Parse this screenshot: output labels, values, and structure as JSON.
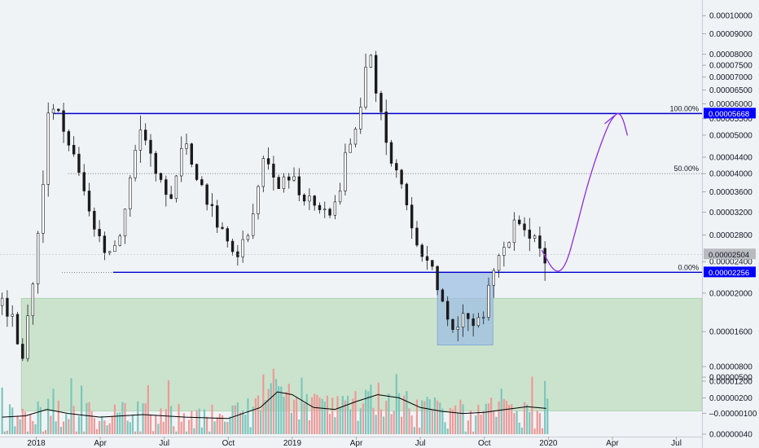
{
  "chart_data": {
    "type": "candlestick",
    "colors": {
      "background": "#f0f3f6",
      "candle": "#1a1a1a",
      "fib_line": "#0000cc",
      "fib_mid_line": "#555555",
      "support_zone": "#c4dfc4",
      "accumulation_box": "#9fbfe3",
      "projection_arrow": "#8a2be2",
      "volume_up": "#7cc6bc",
      "volume_down": "#ec9a98",
      "volume_ma": "#000000",
      "badge_fill": "#0000ff",
      "last_price_badge": "#b8babe"
    },
    "x_axis": {
      "ticks": [
        "2018",
        "Apr",
        "Jul",
        "Oct",
        "2019",
        "Apr",
        "Jul",
        "Oct",
        "2020",
        "Apr",
        "Jul"
      ],
      "tick_months": [
        0,
        3,
        6,
        9,
        12,
        15,
        18,
        21,
        24,
        27,
        30
      ],
      "range_months": [
        -1.7,
        31.2
      ]
    },
    "y_axis": {
      "scale": "log",
      "ticks": [
        "0.00010000",
        "0.00009000",
        "0.00008000",
        "0.00007500",
        "0.00007000",
        "0.00006500",
        "0.00006000",
        "0.00005500",
        "0.00005000",
        "0.00004400",
        "0.00004000",
        "0.00003600",
        "0.00003200",
        "0.00002800",
        "0.00002400",
        "0.00002000",
        "0.00001600",
        "0.00001200"
      ],
      "range": [
        8.7e-06,
        0.0001095
      ]
    },
    "fib_levels": [
      {
        "label": "100.00%",
        "value": 5.668e-05,
        "badge": "0.00005668",
        "style": "solid"
      },
      {
        "label": "50.00%",
        "value": 4e-05,
        "badge": "",
        "style": "dotted"
      },
      {
        "label": "0.00%",
        "value": 2.256e-05,
        "badge": "0.00002256",
        "style": "solid"
      }
    ],
    "last_price": {
      "value": 2.504e-05,
      "badge": "0.00002504"
    },
    "support_zone": {
      "low": 1.01e-05,
      "high": 1.94e-05,
      "from_month": -0.7
    },
    "accumulation_box": {
      "from_month": 18.8,
      "to_month": 21.4,
      "low": 1.48e-05,
      "high": 2.26e-05
    },
    "price_path": [
      {
        "m": -1.6,
        "p": 1.86e-05
      },
      {
        "m": -1.3,
        "p": 1.76e-05
      },
      {
        "m": -1.0,
        "p": 1.65e-05
      },
      {
        "m": -0.8,
        "p": 1.3e-05
      },
      {
        "m": -0.6,
        "p": 1.42e-05
      },
      {
        "m": -0.3,
        "p": 1.9e-05
      },
      {
        "m": 0.0,
        "p": 2.45e-05
      },
      {
        "m": 0.2,
        "p": 3.2e-05
      },
      {
        "m": 0.4,
        "p": 4.5e-05
      },
      {
        "m": 0.6,
        "p": 5.6e-05
      },
      {
        "m": 0.8,
        "p": 6e-05
      },
      {
        "m": 1.0,
        "p": 5.6e-05
      },
      {
        "m": 1.3,
        "p": 5.2e-05
      },
      {
        "m": 1.6,
        "p": 4.7e-05
      },
      {
        "m": 2.0,
        "p": 4e-05
      },
      {
        "m": 2.4,
        "p": 3.4e-05
      },
      {
        "m": 2.8,
        "p": 2.85e-05
      },
      {
        "m": 3.2,
        "p": 2.5e-05
      },
      {
        "m": 3.6,
        "p": 2.6e-05
      },
      {
        "m": 4.0,
        "p": 2.9e-05
      },
      {
        "m": 4.3,
        "p": 3.6e-05
      },
      {
        "m": 4.6,
        "p": 4.6e-05
      },
      {
        "m": 4.9,
        "p": 5.2e-05
      },
      {
        "m": 5.2,
        "p": 4.7e-05
      },
      {
        "m": 5.5,
        "p": 4.2e-05
      },
      {
        "m": 5.9,
        "p": 3.8e-05
      },
      {
        "m": 6.3,
        "p": 3.4e-05
      },
      {
        "m": 6.7,
        "p": 4.2e-05
      },
      {
        "m": 7.0,
        "p": 5e-05
      },
      {
        "m": 7.3,
        "p": 4.2e-05
      },
      {
        "m": 7.7,
        "p": 3.7e-05
      },
      {
        "m": 8.1,
        "p": 3.3e-05
      },
      {
        "m": 8.5,
        "p": 2.9e-05
      },
      {
        "m": 8.9,
        "p": 2.65e-05
      },
      {
        "m": 9.3,
        "p": 2.5e-05
      },
      {
        "m": 9.7,
        "p": 2.6e-05
      },
      {
        "m": 10.1,
        "p": 3e-05
      },
      {
        "m": 10.4,
        "p": 3.8e-05
      },
      {
        "m": 10.7,
        "p": 4.5e-05
      },
      {
        "m": 11.0,
        "p": 4e-05
      },
      {
        "m": 11.4,
        "p": 3.8e-05
      },
      {
        "m": 11.8,
        "p": 3.95e-05
      },
      {
        "m": 12.2,
        "p": 3.7e-05
      },
      {
        "m": 12.6,
        "p": 3.45e-05
      },
      {
        "m": 13.0,
        "p": 3.4e-05
      },
      {
        "m": 13.4,
        "p": 3.3e-05
      },
      {
        "m": 13.8,
        "p": 3.1e-05
      },
      {
        "m": 14.1,
        "p": 3.4e-05
      },
      {
        "m": 14.4,
        "p": 4.2e-05
      },
      {
        "m": 14.7,
        "p": 4.8e-05
      },
      {
        "m": 15.0,
        "p": 5.2e-05
      },
      {
        "m": 15.2,
        "p": 6e-05
      },
      {
        "m": 15.4,
        "p": 7e-05
      },
      {
        "m": 15.6,
        "p": 8e-05
      },
      {
        "m": 15.8,
        "p": 7.2e-05
      },
      {
        "m": 16.0,
        "p": 6e-05
      },
      {
        "m": 16.3,
        "p": 5e-05
      },
      {
        "m": 16.6,
        "p": 4.4e-05
      },
      {
        "m": 16.9,
        "p": 4e-05
      },
      {
        "m": 17.2,
        "p": 3.6e-05
      },
      {
        "m": 17.5,
        "p": 3.1e-05
      },
      {
        "m": 17.8,
        "p": 2.7e-05
      },
      {
        "m": 18.1,
        "p": 2.5e-05
      },
      {
        "m": 18.4,
        "p": 2.35e-05
      },
      {
        "m": 18.8,
        "p": 2.1e-05
      },
      {
        "m": 19.2,
        "p": 1.75e-05
      },
      {
        "m": 19.6,
        "p": 1.68e-05
      },
      {
        "m": 20.0,
        "p": 1.72e-05
      },
      {
        "m": 20.4,
        "p": 1.62e-05
      },
      {
        "m": 20.8,
        "p": 1.75e-05
      },
      {
        "m": 21.2,
        "p": 2e-05
      },
      {
        "m": 21.6,
        "p": 2.4e-05
      },
      {
        "m": 22.0,
        "p": 2.65e-05
      },
      {
        "m": 22.4,
        "p": 2.9e-05
      },
      {
        "m": 22.7,
        "p": 3.05e-05
      },
      {
        "m": 23.0,
        "p": 2.85e-05
      },
      {
        "m": 23.3,
        "p": 2.9e-05
      },
      {
        "m": 23.6,
        "p": 2.6e-05
      },
      {
        "m": 23.9,
        "p": 2.5e-05
      }
    ],
    "projection_path": [
      {
        "m": 23.7,
        "p": 2.56e-05
      },
      {
        "m": 24.3,
        "p": 2.24e-05
      },
      {
        "m": 24.8,
        "p": 2.32e-05
      },
      {
        "m": 25.3,
        "p": 2.9e-05
      },
      {
        "m": 25.8,
        "p": 3.7e-05
      },
      {
        "m": 26.3,
        "p": 4.5e-05
      },
      {
        "m": 26.8,
        "p": 5.3e-05
      },
      {
        "m": 27.1,
        "p": 5.6e-05
      },
      {
        "m": 27.3,
        "p": 5.7e-05
      },
      {
        "m": 27.5,
        "p": 5.5e-05
      },
      {
        "m": 27.7,
        "p": 5e-05
      }
    ],
    "volume": {
      "tick_labels": [
        "0.00000800",
        "0.00000500",
        "0.00000200",
        "0.00000100",
        "0.00000040"
      ],
      "tick_values": [
        8e-06,
        5e-06,
        2e-06,
        1e-06,
        4e-07
      ],
      "ma_path": [
        {
          "m": -1.6,
          "p": 8.5e-07
        },
        {
          "m": -0.5,
          "p": 9e-07
        },
        {
          "m": 0.5,
          "p": 1.2e-06
        },
        {
          "m": 1.5,
          "p": 1e-06
        },
        {
          "m": 3.0,
          "p": 8.5e-07
        },
        {
          "m": 5.0,
          "p": 9.5e-07
        },
        {
          "m": 7.0,
          "p": 8.5e-07
        },
        {
          "m": 9.0,
          "p": 8e-07
        },
        {
          "m": 10.5,
          "p": 1.3e-06
        },
        {
          "m": 11.3,
          "p": 2.6e-06
        },
        {
          "m": 12.0,
          "p": 2.3e-06
        },
        {
          "m": 13.0,
          "p": 1.3e-06
        },
        {
          "m": 14.0,
          "p": 1.2e-06
        },
        {
          "m": 15.0,
          "p": 1.7e-06
        },
        {
          "m": 16.0,
          "p": 2.3e-06
        },
        {
          "m": 17.0,
          "p": 2e-06
        },
        {
          "m": 18.0,
          "p": 1.3e-06
        },
        {
          "m": 19.0,
          "p": 1.1e-06
        },
        {
          "m": 20.0,
          "p": 1e-06
        },
        {
          "m": 21.0,
          "p": 1.05e-06
        },
        {
          "m": 22.0,
          "p": 1.2e-06
        },
        {
          "m": 23.0,
          "p": 1.35e-06
        },
        {
          "m": 23.9,
          "p": 1.25e-06
        }
      ]
    }
  }
}
